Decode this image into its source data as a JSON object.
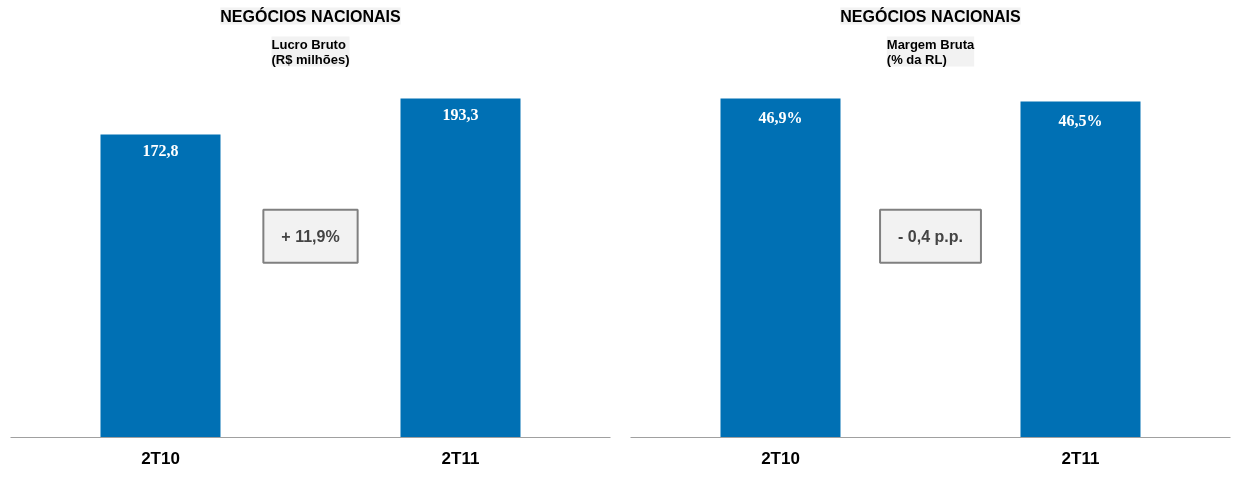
{
  "chart_data": [
    {
      "type": "bar",
      "title": "NEGÓCIOS NACIONAIS",
      "subtitle": "Lucro Bruto\n(R$ milhões)",
      "categories": [
        "2T10",
        "2T11"
      ],
      "values": [
        172.8,
        193.3
      ],
      "value_labels": [
        "172,8",
        "193,3"
      ],
      "color": "#0070b4",
      "tick_labels": "x",
      "grid": false,
      "annotations": [
        "+ 11,9%"
      ]
    },
    {
      "type": "bar",
      "title": "NEGÓCIOS NACIONAIS",
      "subtitle": "Margem Bruta\n(% da RL)",
      "categories": [
        "2T10",
        "2T11"
      ],
      "values": [
        46.9,
        46.5
      ],
      "value_labels": [
        "46,9%",
        "46,5%"
      ],
      "color": "#0070b4",
      "tick_labels": "x",
      "grid": false,
      "annotations": [
        "- 0,4 p.p."
      ]
    }
  ]
}
